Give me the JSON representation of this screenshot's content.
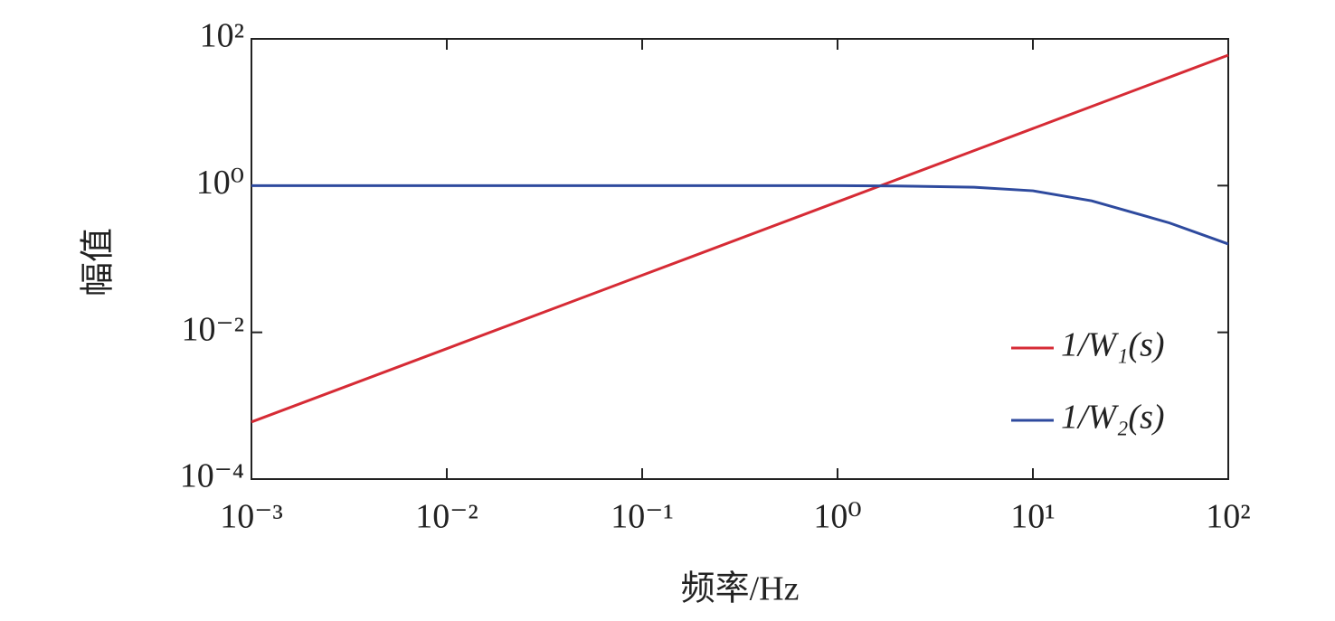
{
  "chart_data": {
    "type": "line",
    "xlabel": "频率/Hz",
    "ylabel": "幅值",
    "x": [
      0.001,
      0.01,
      0.1,
      1,
      2,
      5,
      10,
      20,
      50,
      100
    ],
    "series": [
      {
        "name": "1/W₁(s)",
        "color": "#d62b35",
        "values": [
          0.0006,
          0.006,
          0.06,
          0.6,
          1.2,
          3,
          6,
          12,
          30,
          60
        ]
      },
      {
        "name": "1/W₂(s)",
        "color": "#2e4a9e",
        "values": [
          1,
          1,
          1,
          1,
          0.99,
          0.95,
          0.85,
          0.62,
          0.31,
          0.16
        ]
      }
    ],
    "xscale": "log",
    "yscale": "log",
    "xlim": [
      0.001,
      100
    ],
    "ylim": [
      0.0001,
      100
    ],
    "xticks": [
      {
        "value": 0.001,
        "label": "10⁻³"
      },
      {
        "value": 0.01,
        "label": "10⁻²"
      },
      {
        "value": 0.1,
        "label": "10⁻¹"
      },
      {
        "value": 1,
        "label": "10⁰"
      },
      {
        "value": 10,
        "label": "10¹"
      },
      {
        "value": 100,
        "label": "10²"
      }
    ],
    "yticks": [
      {
        "value": 0.0001,
        "label": "10⁻⁴"
      },
      {
        "value": 0.01,
        "label": "10⁻²"
      },
      {
        "value": 1,
        "label": "10⁰"
      },
      {
        "value": 100,
        "label": "10²"
      }
    ],
    "grid": false,
    "legend": "lower right"
  }
}
